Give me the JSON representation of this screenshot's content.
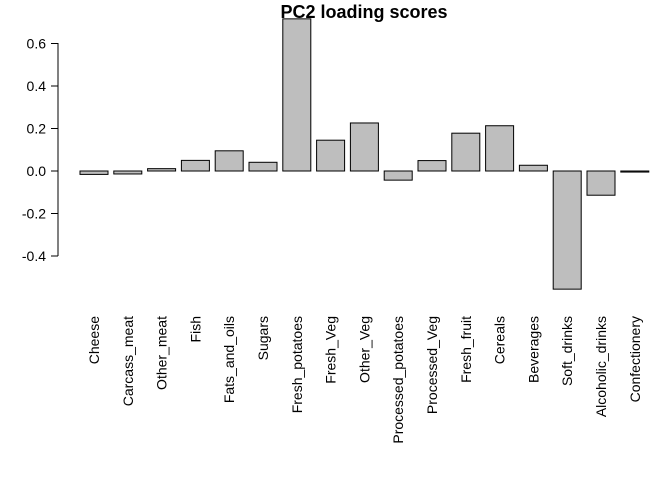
{
  "chart_data": {
    "type": "bar",
    "title": "PC2 loading scores",
    "xlabel": "",
    "ylabel": "",
    "ylim": [
      -0.55,
      0.72
    ],
    "yticks": [
      -0.4,
      -0.2,
      0.0,
      0.2,
      0.4,
      0.6
    ],
    "ytick_labels": [
      "-0.4",
      "-0.2",
      "0.0",
      "0.2",
      "0.4",
      "0.6"
    ],
    "grid": false,
    "categories": [
      "Cheese",
      "Carcass_meat",
      "Other_meat",
      "Fish",
      "Fats_and_oils",
      "Sugars",
      "Fresh_potatoes",
      "Fresh_Veg",
      "Other_Veg",
      "Processed_potatoes",
      "Processed_Veg",
      "Fresh_fruit",
      "Cereals",
      "Beverages",
      "Soft_drinks",
      "Alcoholic_drinks",
      "Confectionery"
    ],
    "values": [
      -0.016,
      -0.014,
      0.011,
      0.05,
      0.095,
      0.041,
      0.716,
      0.145,
      0.226,
      -0.043,
      0.049,
      0.178,
      0.213,
      0.027,
      -0.556,
      -0.114,
      -0.005
    ],
    "colors": {
      "bar_fill": "#bebebe",
      "bar_stroke": "#000000"
    }
  }
}
